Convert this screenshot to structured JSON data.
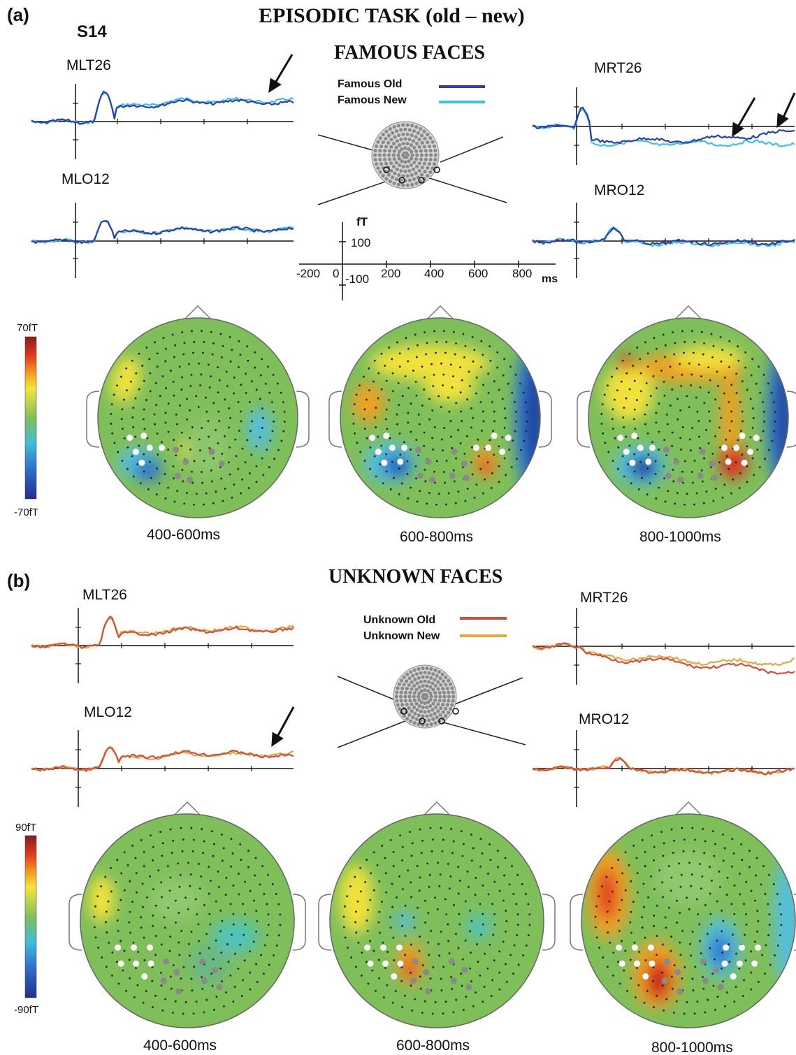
{
  "panel_a": {
    "label": "(a)",
    "title": "EPISODIC TASK (old – new)",
    "subject": "S14",
    "subtitle": "FAMOUS FACES",
    "legend": {
      "old": "Famous Old",
      "new": "Famous New"
    },
    "channels": {
      "mlt": "MLT26",
      "mlo": "MLO12",
      "mrt": "MRT26",
      "mro": "MRO12"
    },
    "scale": {
      "unit": "fT",
      "pos": "100",
      "neg": "-100",
      "time_unit": "ms",
      "ticks": [
        "-200",
        "0",
        "200",
        "400",
        "600",
        "800"
      ]
    },
    "colorbar": {
      "max": "70fT",
      "min": "-70fT"
    },
    "windows": [
      "400-600ms",
      "600-800ms",
      "800-1000ms"
    ]
  },
  "panel_b": {
    "label": "(b)",
    "subtitle": "UNKNOWN FACES",
    "legend": {
      "old": "Unknown Old",
      "new": "Unknown  New"
    },
    "channels": {
      "mlt": "MLT26",
      "mlo": "MLO12",
      "mrt": "MRT26",
      "mro": "MRO12"
    },
    "colorbar": {
      "max": "90fT",
      "min": "-90fT"
    },
    "windows": [
      "400-600ms",
      "600-800ms",
      "800-1000ms"
    ]
  },
  "colors": {
    "famous_old": "#2b3fb0",
    "famous_new": "#3fc0ea",
    "unknown_old": "#d2503a",
    "unknown_new": "#e3a840",
    "topo_background": "#7fbf5a"
  }
}
